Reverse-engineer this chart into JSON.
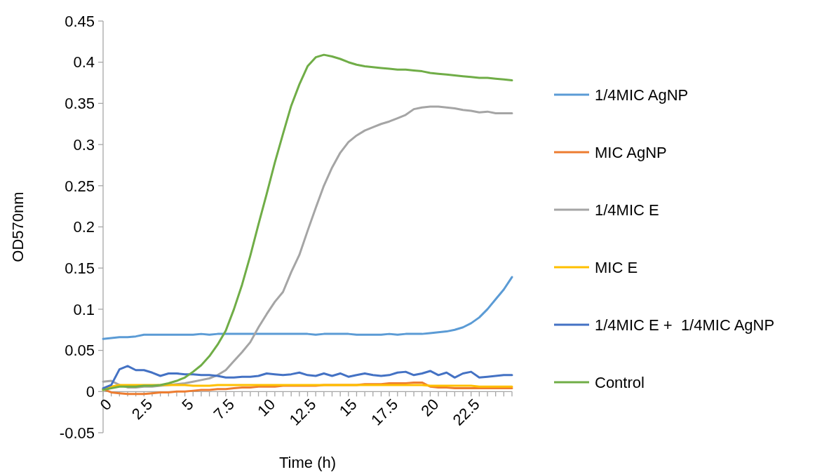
{
  "chart_data": {
    "type": "line",
    "xlabel": "Time (h)",
    "ylabel": "OD570nm",
    "x": [
      0,
      0.5,
      1,
      1.5,
      2,
      2.5,
      3,
      3.5,
      4,
      4.5,
      5,
      5.5,
      6,
      6.5,
      7,
      7.5,
      8,
      8.5,
      9,
      9.5,
      10,
      10.5,
      11,
      11.5,
      12,
      12.5,
      13,
      13.5,
      14,
      14.5,
      15,
      15.5,
      16,
      16.5,
      17,
      17.5,
      18,
      18.5,
      19,
      19.5,
      20,
      20.5,
      21,
      21.5,
      22,
      22.5,
      23,
      23.5,
      24,
      24.5,
      25
    ],
    "xlim": [
      0,
      25
    ],
    "xticks": [
      0,
      {
        "value": 0.5,
        "label": null
      },
      {
        "value": 1,
        "label": null
      },
      {
        "value": 1.5,
        "label": null
      },
      {
        "value": 2,
        "label": null
      },
      2.5,
      {
        "value": 3,
        "label": null
      },
      {
        "value": 3.5,
        "label": null
      },
      {
        "value": 4,
        "label": null
      },
      {
        "value": 4.5,
        "label": null
      },
      5,
      {
        "value": 5.5,
        "label": null
      },
      {
        "value": 6,
        "label": null
      },
      {
        "value": 6.5,
        "label": null
      },
      {
        "value": 7,
        "label": null
      },
      7.5,
      {
        "value": 8,
        "label": null
      },
      {
        "value": 8.5,
        "label": null
      },
      {
        "value": 9,
        "label": null
      },
      {
        "value": 9.5,
        "label": null
      },
      10,
      {
        "value": 10.5,
        "label": null
      },
      {
        "value": 11,
        "label": null
      },
      {
        "value": 11.5,
        "label": null
      },
      {
        "value": 12,
        "label": null
      },
      12.5,
      {
        "value": 13,
        "label": null
      },
      {
        "value": 13.5,
        "label": null
      },
      {
        "value": 14,
        "label": null
      },
      {
        "value": 14.5,
        "label": null
      },
      15,
      {
        "value": 15.5,
        "label": null
      },
      {
        "value": 16,
        "label": null
      },
      {
        "value": 16.5,
        "label": null
      },
      {
        "value": 17,
        "label": null
      },
      17.5,
      {
        "value": 18,
        "label": null
      },
      {
        "value": 18.5,
        "label": null
      },
      {
        "value": 19,
        "label": null
      },
      {
        "value": 19.5,
        "label": null
      },
      20,
      {
        "value": 20.5,
        "label": null
      },
      {
        "value": 21,
        "label": null
      },
      {
        "value": 21.5,
        "label": null
      },
      {
        "value": 22,
        "label": null
      },
      22.5,
      {
        "value": 23,
        "label": null
      },
      {
        "value": 23.5,
        "label": null
      },
      {
        "value": 24,
        "label": null
      },
      {
        "value": 24.5,
        "label": null
      },
      {
        "value": 25,
        "label": null
      }
    ],
    "ylim": [
      -0.05,
      0.45
    ],
    "yticks": [
      -0.05,
      0,
      0.05,
      0.1,
      0.15,
      0.2,
      0.25,
      0.3,
      0.35,
      0.4,
      0.45
    ],
    "grid": false,
    "legend": "right",
    "marker": "none",
    "line_style": "solid",
    "series": [
      {
        "name": "1/4MIC AgNP",
        "color": "#5b9bd5",
        "values": [
          0.064,
          0.065,
          0.066,
          0.066,
          0.067,
          0.069,
          0.069,
          0.069,
          0.069,
          0.069,
          0.069,
          0.069,
          0.07,
          0.069,
          0.07,
          0.07,
          0.07,
          0.07,
          0.07,
          0.07,
          0.07,
          0.07,
          0.07,
          0.07,
          0.07,
          0.07,
          0.069,
          0.07,
          0.07,
          0.07,
          0.07,
          0.069,
          0.069,
          0.069,
          0.069,
          0.07,
          0.069,
          0.07,
          0.07,
          0.07,
          0.071,
          0.072,
          0.073,
          0.075,
          0.078,
          0.083,
          0.09,
          0.1,
          0.112,
          0.124,
          0.139
        ]
      },
      {
        "name": "MIC AgNP",
        "color": "#ed7d31",
        "values": [
          0.003,
          -0.001,
          -0.002,
          -0.003,
          -0.003,
          -0.003,
          -0.002,
          -0.001,
          -0.001,
          0,
          0,
          0.001,
          0.002,
          0.002,
          0.003,
          0.003,
          0.004,
          0.005,
          0.005,
          0.006,
          0.006,
          0.006,
          0.007,
          0.007,
          0.007,
          0.007,
          0.007,
          0.008,
          0.008,
          0.008,
          0.008,
          0.008,
          0.009,
          0.009,
          0.009,
          0.01,
          0.01,
          0.01,
          0.011,
          0.011,
          0.006,
          0.005,
          0.005,
          0.004,
          0.004,
          0.004,
          0.004,
          0.004,
          0.004,
          0.004,
          0.004
        ]
      },
      {
        "name": "1/4MIC E",
        "color": "#a5a5a5",
        "values": [
          0.012,
          0.013,
          0.008,
          0.005,
          0.005,
          0.006,
          0.006,
          0.007,
          0.008,
          0.009,
          0.01,
          0.012,
          0.014,
          0.016,
          0.02,
          0.026,
          0.037,
          0.048,
          0.06,
          0.078,
          0.094,
          0.109,
          0.121,
          0.145,
          0.166,
          0.195,
          0.223,
          0.25,
          0.272,
          0.29,
          0.303,
          0.311,
          0.317,
          0.321,
          0.325,
          0.328,
          0.332,
          0.336,
          0.343,
          0.345,
          0.346,
          0.346,
          0.345,
          0.344,
          0.342,
          0.341,
          0.339,
          0.34,
          0.338,
          0.338,
          0.338
        ]
      },
      {
        "name": "MIC E",
        "color": "#ffc000",
        "values": [
          0.002,
          0.006,
          0.008,
          0.008,
          0.008,
          0.008,
          0.008,
          0.008,
          0.008,
          0.008,
          0.008,
          0.007,
          0.007,
          0.007,
          0.008,
          0.008,
          0.008,
          0.008,
          0.008,
          0.008,
          0.008,
          0.008,
          0.008,
          0.008,
          0.008,
          0.008,
          0.008,
          0.008,
          0.008,
          0.008,
          0.008,
          0.008,
          0.008,
          0.008,
          0.008,
          0.008,
          0.008,
          0.008,
          0.008,
          0.008,
          0.007,
          0.007,
          0.007,
          0.007,
          0.007,
          0.007,
          0.006,
          0.006,
          0.006,
          0.006,
          0.006
        ]
      },
      {
        "name": "1/4MIC E +  1/4MIC AgNP",
        "color": "#4472c4",
        "values": [
          0.004,
          0.008,
          0.027,
          0.031,
          0.026,
          0.026,
          0.023,
          0.019,
          0.022,
          0.022,
          0.021,
          0.021,
          0.02,
          0.02,
          0.019,
          0.017,
          0.017,
          0.018,
          0.018,
          0.019,
          0.022,
          0.021,
          0.02,
          0.021,
          0.023,
          0.02,
          0.019,
          0.022,
          0.019,
          0.022,
          0.018,
          0.02,
          0.022,
          0.02,
          0.019,
          0.02,
          0.023,
          0.024,
          0.02,
          0.022,
          0.025,
          0.02,
          0.023,
          0.017,
          0.022,
          0.024,
          0.017,
          0.018,
          0.019,
          0.02,
          0.02
        ]
      },
      {
        "name": "Control",
        "color": "#70ad47",
        "values": [
          0.002,
          0.004,
          0.006,
          0.006,
          0.006,
          0.007,
          0.007,
          0.008,
          0.01,
          0.013,
          0.017,
          0.024,
          0.032,
          0.043,
          0.057,
          0.074,
          0.1,
          0.13,
          0.165,
          0.203,
          0.24,
          0.278,
          0.313,
          0.347,
          0.373,
          0.395,
          0.406,
          0.409,
          0.407,
          0.404,
          0.4,
          0.397,
          0.395,
          0.394,
          0.393,
          0.392,
          0.391,
          0.391,
          0.39,
          0.389,
          0.387,
          0.386,
          0.385,
          0.384,
          0.383,
          0.382,
          0.381,
          0.381,
          0.38,
          0.379,
          0.378
        ]
      }
    ]
  }
}
